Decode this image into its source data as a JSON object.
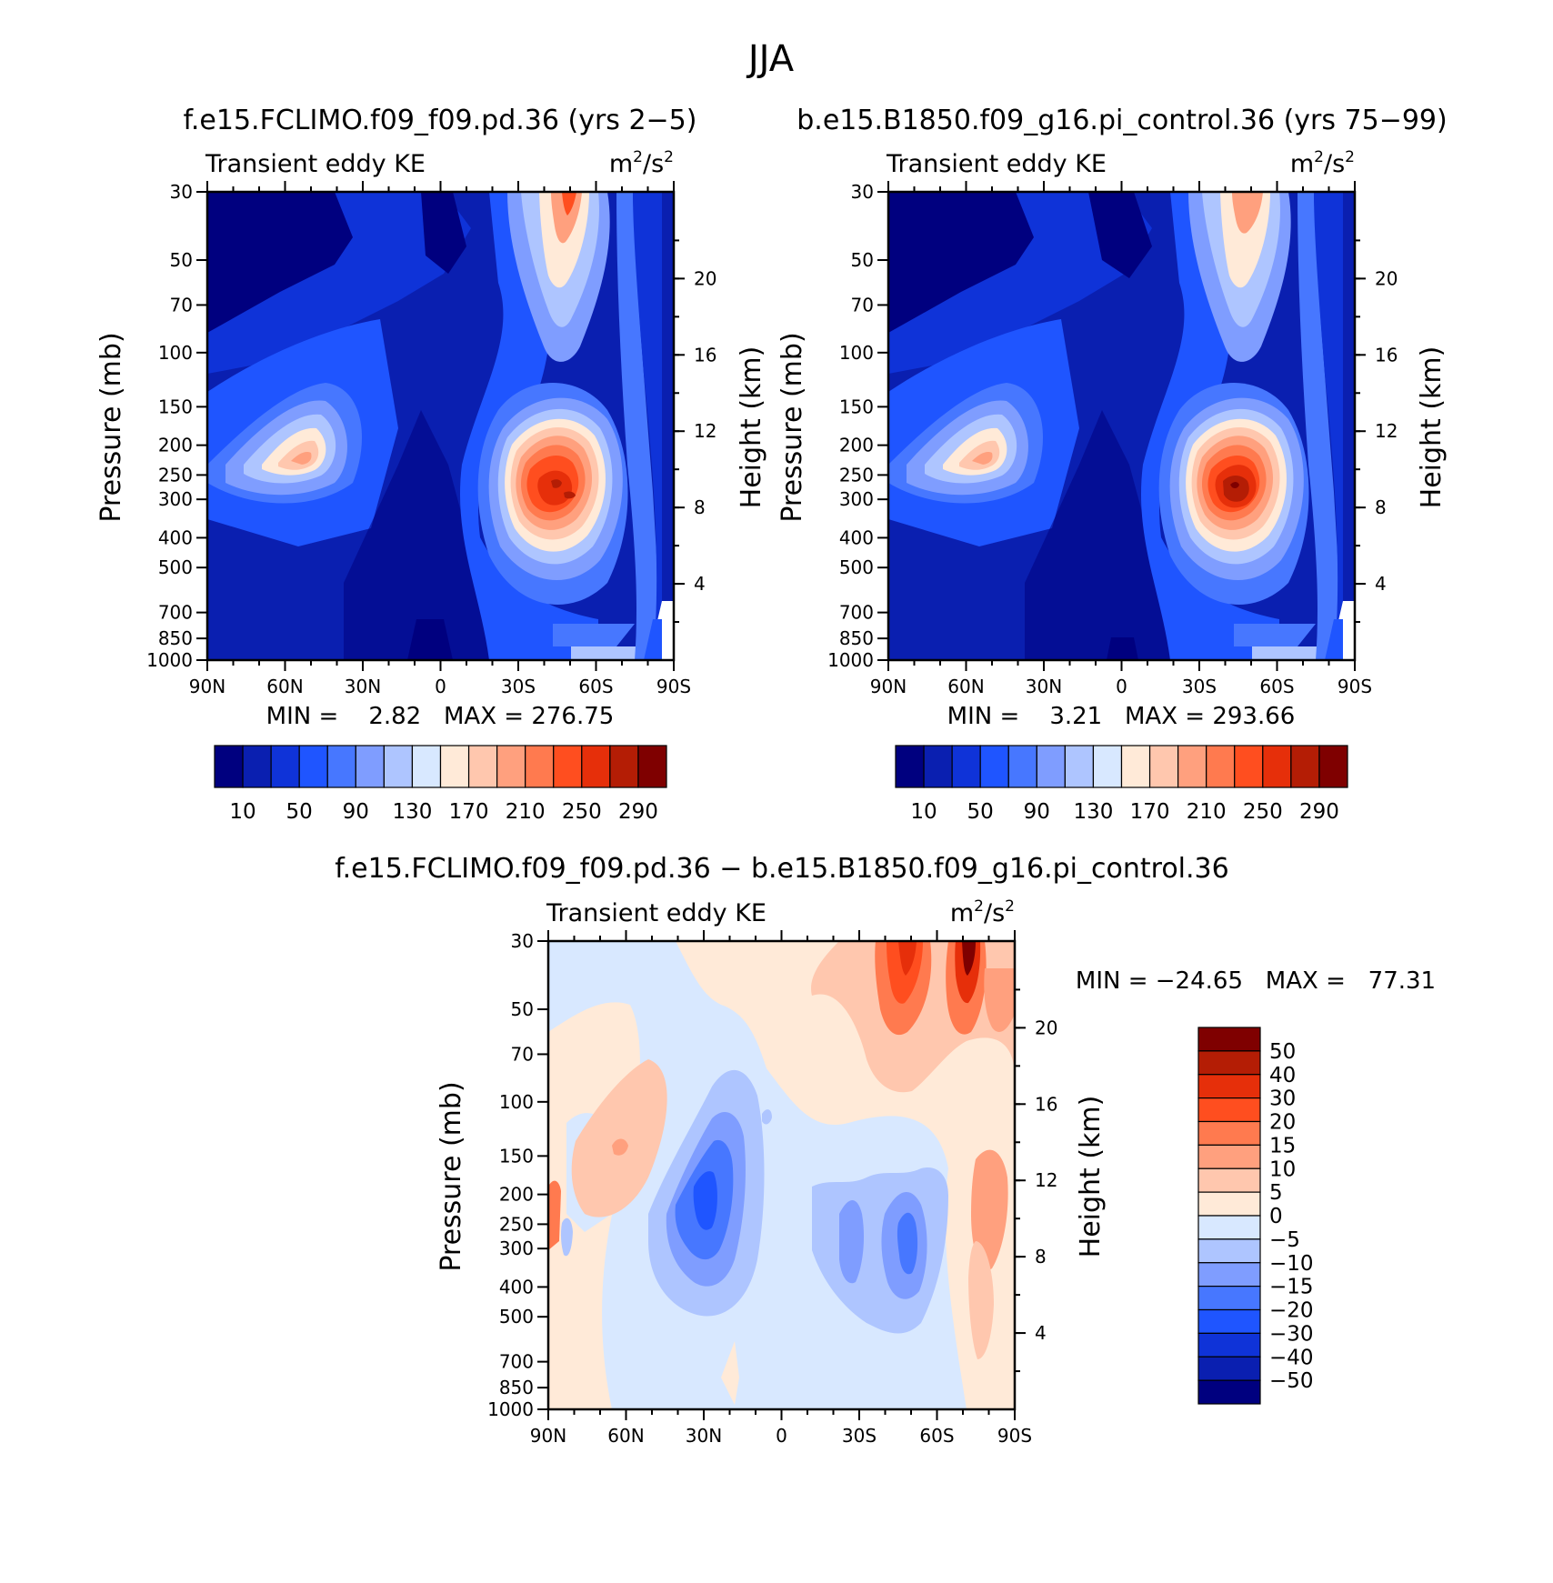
{
  "main_title": "JJA",
  "units_sup": "2",
  "chart_data": [
    {
      "type": "heatmap",
      "id": "left",
      "title": "f.e15.FCLIMO.f09_f09.pd.36 (yrs 2−5)",
      "subtitle_left": "Transient eddy KE",
      "units": "m²/s²",
      "units_base": "m",
      "units_mid": "/s",
      "ylabel": "Pressure (mb)",
      "y2label": "Height (km)",
      "x_ticks": [
        "90N",
        "60N",
        "30N",
        "0",
        "30S",
        "60S",
        "90S"
      ],
      "y_ticks": [
        "30",
        "50",
        "70",
        "100",
        "150",
        "200",
        "250",
        "300",
        "400",
        "500",
        "700",
        "850",
        "1000"
      ],
      "y2_ticks": [
        "20",
        "16",
        "12",
        "8",
        "4"
      ],
      "stats": "MIN =    2.82   MAX = 276.75",
      "colorbar_labels": [
        "10",
        "50",
        "90",
        "130",
        "170",
        "210",
        "250",
        "290"
      ],
      "colorbar_colors": [
        "#00007f",
        "#0a1fb0",
        "#0f33d8",
        "#1f55ff",
        "#4777ff",
        "#7f9dff",
        "#aec5ff",
        "#d8e8ff",
        "#ffead8",
        "#ffc7ae",
        "#ffa07e",
        "#ff7a4f",
        "#ff4e1f",
        "#e62f0a",
        "#b41d05",
        "#7f0000"
      ],
      "min": 2.82,
      "max": 276.75
    },
    {
      "type": "heatmap",
      "id": "right",
      "title": "b.e15.B1850.f09_g16.pi_control.36 (yrs 75−99)",
      "subtitle_left": "Transient eddy KE",
      "units": "m²/s²",
      "units_base": "m",
      "units_mid": "/s",
      "ylabel": "Pressure (mb)",
      "y2label": "Height (km)",
      "x_ticks": [
        "90N",
        "60N",
        "30N",
        "0",
        "30S",
        "60S",
        "90S"
      ],
      "y_ticks": [
        "30",
        "50",
        "70",
        "100",
        "150",
        "200",
        "250",
        "300",
        "400",
        "500",
        "700",
        "850",
        "1000"
      ],
      "y2_ticks": [
        "20",
        "16",
        "12",
        "8",
        "4"
      ],
      "stats": "MIN =    3.21   MAX = 293.66",
      "colorbar_labels": [
        "10",
        "50",
        "90",
        "130",
        "170",
        "210",
        "250",
        "290"
      ],
      "colorbar_colors": [
        "#00007f",
        "#0a1fb0",
        "#0f33d8",
        "#1f55ff",
        "#4777ff",
        "#7f9dff",
        "#aec5ff",
        "#d8e8ff",
        "#ffead8",
        "#ffc7ae",
        "#ffa07e",
        "#ff7a4f",
        "#ff4e1f",
        "#e62f0a",
        "#b41d05",
        "#7f0000"
      ],
      "min": 3.21,
      "max": 293.66
    },
    {
      "type": "heatmap",
      "id": "diff",
      "title": "f.e15.FCLIMO.f09_f09.pd.36 − b.e15.B1850.f09_g16.pi_control.36",
      "subtitle_left": "Transient eddy KE",
      "units": "m²/s²",
      "units_base": "m",
      "units_mid": "/s",
      "ylabel": "Pressure (mb)",
      "y2label": "Height (km)",
      "x_ticks": [
        "90N",
        "60N",
        "30N",
        "0",
        "30S",
        "60S",
        "90S"
      ],
      "y_ticks": [
        "30",
        "50",
        "70",
        "100",
        "150",
        "200",
        "250",
        "300",
        "400",
        "500",
        "700",
        "850",
        "1000"
      ],
      "y2_ticks": [
        "20",
        "16",
        "12",
        "8",
        "4"
      ],
      "stats": "MIN = −24.65   MAX =   77.31",
      "colorbar_labels": [
        "50",
        "40",
        "30",
        "20",
        "15",
        "10",
        "5",
        "0",
        "−5",
        "−10",
        "−15",
        "−20",
        "−30",
        "−40",
        "−50"
      ],
      "colorbar_colors": [
        "#7f0000",
        "#b41d05",
        "#e62f0a",
        "#ff4e1f",
        "#ff7a4f",
        "#ffa07e",
        "#ffc7ae",
        "#ffead8",
        "#d8e8ff",
        "#aec5ff",
        "#7f9dff",
        "#4777ff",
        "#1f55ff",
        "#0f33d8",
        "#0a1fb0",
        "#00007f"
      ],
      "min": -24.65,
      "max": 77.31
    }
  ]
}
